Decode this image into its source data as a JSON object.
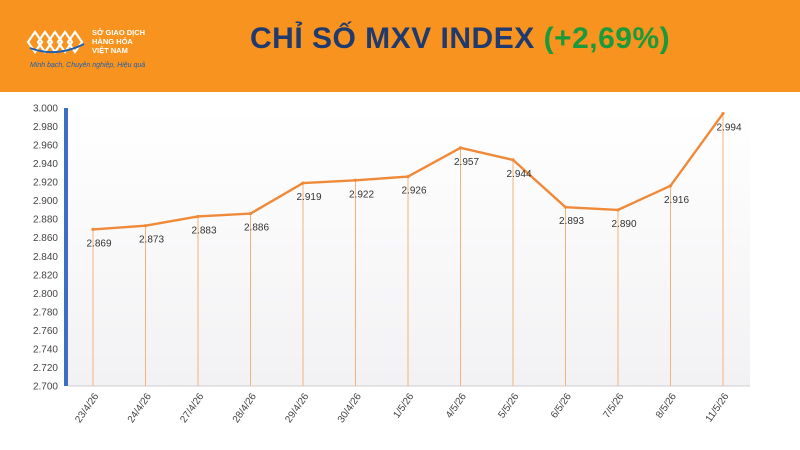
{
  "header": {
    "logo": {
      "name_lines": [
        "SỞ GIAO DỊCH",
        "HÀNG HÓA",
        "VIỆT NAM"
      ],
      "slogan": "Minh bạch, Chuyên nghiệp, Hiệu quả"
    },
    "title": "CHỈ SỐ MXV INDEX",
    "change": "(+2,69%)",
    "colors": {
      "banner": "#f7931e",
      "title": "#1f3a6e",
      "change": "#1a9a3a"
    }
  },
  "chart_data": {
    "type": "line",
    "title": "",
    "xlabel": "",
    "ylabel": "",
    "categories": [
      "23/4/26",
      "24/4/26",
      "27/4/26",
      "28/4/26",
      "29/4/26",
      "30/4/26",
      "1/5/26",
      "4/5/26",
      "5/5/26",
      "6/5/26",
      "7/5/26",
      "8/5/26",
      "11/5/26"
    ],
    "series": [
      {
        "values": [
          2869,
          2873,
          2883,
          2886,
          2919,
          2922,
          2926,
          2957,
          2944,
          2893,
          2890,
          2916,
          2994
        ],
        "labels": [
          "2.869",
          "2.873",
          "2.883",
          "2.886",
          "2.919",
          "2.922",
          "2.926",
          "2.957",
          "2.944",
          "2.893",
          "2.890",
          "2.916",
          "2.994"
        ],
        "color": "#ef8a3a"
      }
    ],
    "ylim": [
      2700,
      3000
    ],
    "yticks": [
      2700,
      2720,
      2740,
      2760,
      2780,
      2800,
      2820,
      2840,
      2860,
      2880,
      2900,
      2920,
      2940,
      2960,
      2980,
      3000
    ],
    "ytick_labels": [
      "2.700",
      "2.720",
      "2.740",
      "2.760",
      "2.780",
      "2.800",
      "2.820",
      "2.840",
      "2.860",
      "2.880",
      "2.900",
      "2.920",
      "2.940",
      "2.960",
      "2.980",
      "3.000"
    ],
    "grid": false,
    "legend": "none",
    "drop_lines": true,
    "axis_accent_color": "#3a6fc4"
  }
}
